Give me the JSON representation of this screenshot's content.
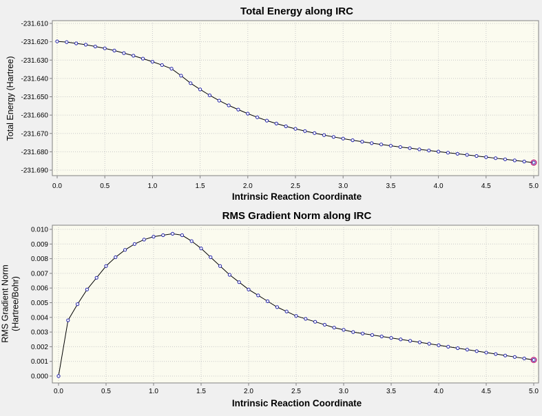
{
  "chart_data": [
    {
      "type": "line",
      "title": "Total Energy along IRC",
      "xlabel": "Intrinsic Reaction Coordinate",
      "ylabel": [
        "Total Energy (Hartree)"
      ],
      "xlim": [
        0.0,
        5.0
      ],
      "ylim": [
        -231.69,
        -231.61
      ],
      "xticks": [
        "0.0",
        "0.5",
        "1.0",
        "1.5",
        "2.0",
        "2.5",
        "3.0",
        "3.5",
        "4.0",
        "4.5",
        "5.0"
      ],
      "yticks": [
        "-231.610",
        "-231.620",
        "-231.630",
        "-231.640",
        "-231.650",
        "-231.660",
        "-231.670",
        "-231.680",
        "-231.690"
      ],
      "grid": true,
      "series": [
        {
          "name": "Total Energy",
          "x": [
            0.0,
            0.1,
            0.2,
            0.3,
            0.4,
            0.5,
            0.6,
            0.7,
            0.8,
            0.9,
            1.0,
            1.1,
            1.2,
            1.3,
            1.4,
            1.5,
            1.6,
            1.7,
            1.8,
            1.9,
            2.0,
            2.1,
            2.2,
            2.3,
            2.4,
            2.5,
            2.6,
            2.7,
            2.8,
            2.9,
            3.0,
            3.1,
            3.2,
            3.3,
            3.4,
            3.5,
            3.6,
            3.7,
            3.8,
            3.9,
            4.0,
            4.1,
            4.2,
            4.3,
            4.4,
            4.5,
            4.6,
            4.7,
            4.8,
            4.9,
            5.0
          ],
          "values": [
            -231.6198,
            -231.6202,
            -231.6209,
            -231.6216,
            -231.6226,
            -231.6236,
            -231.6248,
            -231.6262,
            -231.6276,
            -231.6292,
            -231.6309,
            -231.6327,
            -231.6347,
            -231.6385,
            -231.6426,
            -231.646,
            -231.6492,
            -231.6521,
            -231.6547,
            -231.657,
            -231.6592,
            -231.6612,
            -231.663,
            -231.6646,
            -231.6661,
            -231.6675,
            -231.6687,
            -231.6698,
            -231.6709,
            -231.6719,
            -231.6728,
            -231.6737,
            -231.6745,
            -231.6753,
            -231.676,
            -231.6767,
            -231.6774,
            -231.678,
            -231.6787,
            -231.6793,
            -231.6799,
            -231.6805,
            -231.6811,
            -231.6817,
            -231.6823,
            -231.6829,
            -231.6835,
            -231.6841,
            -231.6847,
            -231.6853,
            -231.6859
          ]
        }
      ]
    },
    {
      "type": "line",
      "title": "RMS Gradient Norm along IRC",
      "xlabel": "Intrinsic Reaction Coordinate",
      "ylabel": [
        "RMS Gradient Norm",
        "(Hartree/Bohr)"
      ],
      "xlim": [
        0.0,
        5.0
      ],
      "ylim": [
        0.0,
        0.01
      ],
      "xticks": [
        "0.0",
        "0.5",
        "1.0",
        "1.5",
        "2.0",
        "2.5",
        "3.0",
        "3.5",
        "4.0",
        "4.5",
        "5.0"
      ],
      "yticks": [
        "0.010",
        "0.009",
        "0.008",
        "0.007",
        "0.006",
        "0.005",
        "0.004",
        "0.003",
        "0.002",
        "0.001",
        "0.000"
      ],
      "grid": true,
      "series": [
        {
          "name": "RMS Gradient Norm",
          "x": [
            0.0,
            0.1,
            0.2,
            0.3,
            0.4,
            0.5,
            0.6,
            0.7,
            0.8,
            0.9,
            1.0,
            1.1,
            1.2,
            1.3,
            1.4,
            1.5,
            1.6,
            1.7,
            1.8,
            1.9,
            2.0,
            2.1,
            2.2,
            2.3,
            2.4,
            2.5,
            2.6,
            2.7,
            2.8,
            2.9,
            3.0,
            3.1,
            3.2,
            3.3,
            3.4,
            3.5,
            3.6,
            3.7,
            3.8,
            3.9,
            4.0,
            4.1,
            4.2,
            4.3,
            4.4,
            4.5,
            4.6,
            4.7,
            4.8,
            4.9,
            5.0
          ],
          "values": [
            0.0,
            0.0038,
            0.0049,
            0.0059,
            0.0067,
            0.0075,
            0.0081,
            0.0086,
            0.009,
            0.0093,
            0.0095,
            0.0096,
            0.0097,
            0.0096,
            0.0092,
            0.0087,
            0.0081,
            0.0075,
            0.0069,
            0.0064,
            0.0059,
            0.0055,
            0.0051,
            0.0047,
            0.0044,
            0.0041,
            0.0039,
            0.0037,
            0.0035,
            0.0033,
            0.00315,
            0.003,
            0.0029,
            0.0028,
            0.0027,
            0.0026,
            0.0025,
            0.0024,
            0.0023,
            0.0022,
            0.0021,
            0.002,
            0.0019,
            0.0018,
            0.0017,
            0.0016,
            0.0015,
            0.0014,
            0.0013,
            0.0012,
            0.0011
          ]
        }
      ]
    }
  ]
}
